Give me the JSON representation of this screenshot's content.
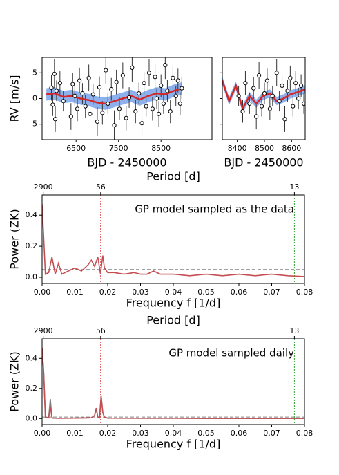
{
  "chart_data": [
    {
      "type": "scatter",
      "xlabel": "BJD - 2450000",
      "ylabel": "RV [m/s]",
      "xlim": [
        5700,
        9700
      ],
      "xticks": [
        6500,
        7500,
        8500
      ],
      "ylim": [
        -8,
        8
      ],
      "yticks": [
        -5,
        0,
        5
      ],
      "ytick_labels": true,
      "x": [
        5920,
        5950,
        5990,
        6010,
        6040,
        6120,
        6200,
        6380,
        6420,
        6470,
        6530,
        6580,
        6650,
        6720,
        6800,
        6830,
        6900,
        7000,
        7050,
        7120,
        7200,
        7250,
        7330,
        7400,
        7450,
        7520,
        7600,
        7680,
        7750,
        7820,
        7900,
        7980,
        8050,
        8100,
        8150,
        8220,
        8300,
        8360,
        8400,
        8450,
        8500,
        8560,
        8600,
        8650,
        8720,
        8780,
        8850,
        8900,
        8950,
        8990
      ],
      "values": [
        2.1,
        -1.2,
        4.8,
        -4.0,
        1.5,
        3.0,
        -0.5,
        -3.5,
        2.8,
        0.5,
        -2.0,
        3.5,
        1.0,
        -1.5,
        4.0,
        -3.0,
        0.8,
        -4.5,
        2.2,
        -2.8,
        5.5,
        -1.0,
        1.8,
        -5.2,
        3.2,
        -2.0,
        4.5,
        -3.8,
        0.2,
        6.0,
        -2.5,
        1.0,
        -4.8,
        3.0,
        -1.5,
        5.0,
        -2.0,
        4.2,
        0.0,
        -3.0,
        2.5,
        -1.0,
        6.5,
        1.5,
        -2.5,
        4.0,
        0.5,
        3.5,
        -1.0,
        2.0
      ],
      "errors": [
        2.5,
        2.2,
        2.8,
        2.5,
        2.0,
        2.3,
        2.0,
        2.6,
        2.2,
        2.0,
        2.4,
        2.5,
        2.0,
        2.2,
        2.6,
        2.3,
        2.0,
        2.8,
        2.1,
        2.3,
        2.7,
        2.0,
        2.2,
        2.9,
        2.4,
        2.2,
        2.5,
        2.4,
        2.0,
        2.8,
        2.3,
        2.1,
        2.7,
        2.2,
        2.0,
        2.6,
        2.3,
        2.4,
        2.0,
        2.5,
        2.2,
        2.0,
        2.7,
        2.1,
        2.3,
        2.4,
        2.0,
        2.3,
        2.2,
        2.1
      ],
      "color": "#ffffff",
      "model_x": [
        5800,
        6000,
        6200,
        6400,
        6600,
        6800,
        7000,
        7200,
        7400,
        7600,
        7800,
        8000,
        8200,
        8400,
        8600,
        8800,
        9000
      ],
      "model_values": [
        0.8,
        1.0,
        0.3,
        0.5,
        0.0,
        -0.3,
        -0.8,
        -1.0,
        -0.5,
        0.0,
        0.5,
        -0.2,
        0.5,
        1.0,
        0.8,
        1.5,
        2.0
      ],
      "model_lower": [
        -0.4,
        -0.2,
        -0.9,
        -0.7,
        -1.2,
        -1.5,
        -2.0,
        -2.2,
        -1.7,
        -1.2,
        -0.7,
        -1.4,
        -0.7,
        -0.2,
        -0.4,
        0.3,
        0.8
      ],
      "model_upper": [
        2.0,
        2.2,
        1.5,
        1.7,
        1.2,
        0.9,
        0.4,
        0.2,
        0.7,
        1.2,
        1.7,
        1.0,
        1.7,
        2.2,
        2.0,
        2.7,
        3.2
      ],
      "model_color": "#d62728",
      "band_color": "#6f9ee8"
    },
    {
      "type": "scatter",
      "xlabel": "BJD - 2450000",
      "xlim": [
        8345,
        8650
      ],
      "xticks": [
        8400,
        8500,
        8600
      ],
      "ylim": [
        -8,
        8
      ],
      "yticks": [
        -5,
        0,
        5
      ],
      "ytick_labels": false,
      "x": [
        8405,
        8420,
        8430,
        8445,
        8460,
        8470,
        8480,
        8490,
        8500,
        8510,
        8520,
        8530,
        8545,
        8555,
        8565,
        8575,
        8585,
        8595,
        8605,
        8615,
        8625,
        8635,
        8645
      ],
      "values": [
        0.5,
        -2.5,
        3.0,
        -1.0,
        2.0,
        -3.5,
        4.5,
        -1.5,
        1.0,
        3.5,
        -2.0,
        0.5,
        5.0,
        -0.5,
        2.5,
        -4.0,
        1.5,
        4.0,
        -1.5,
        3.0,
        0.0,
        2.5,
        -1.0
      ],
      "errors": [
        2.0,
        2.2,
        2.4,
        2.0,
        2.1,
        2.5,
        2.6,
        2.0,
        2.1,
        2.3,
        2.2,
        2.0,
        2.6,
        2.0,
        2.2,
        2.5,
        2.1,
        2.4,
        2.0,
        2.3,
        2.1,
        2.2,
        2.0
      ],
      "color": "#ffffff",
      "model_x": [
        8345,
        8370,
        8395,
        8420,
        8445,
        8470,
        8495,
        8520,
        8545,
        8570,
        8595,
        8620,
        8650
      ],
      "model_values": [
        3.5,
        -0.5,
        2.5,
        -2.0,
        0.5,
        -1.0,
        0.5,
        1.0,
        -0.5,
        0.0,
        0.8,
        1.2,
        1.8
      ],
      "model_lower": [
        2.7,
        -1.3,
        1.7,
        -2.8,
        -0.3,
        -1.8,
        -0.3,
        0.2,
        -1.3,
        -0.8,
        0.0,
        0.4,
        1.0
      ],
      "model_upper": [
        4.3,
        0.3,
        3.3,
        -1.2,
        1.3,
        -0.2,
        1.3,
        1.8,
        0.3,
        0.8,
        1.6,
        2.0,
        2.6
      ],
      "model_color": "#d62728",
      "band_color": "#6f9ee8"
    },
    {
      "type": "line",
      "xlabel": "Frequency f [1/d]",
      "ylabel": "Power (ZK)",
      "top_axis_label": "Period [d]",
      "annotation": "GP model sampled as the data",
      "xlim": [
        0,
        0.08
      ],
      "xticks": [
        {
          "value": 0,
          "label": "0.00"
        },
        0.01,
        0.02,
        0.03,
        0.04,
        0.05,
        0.06,
        0.07,
        0.08
      ],
      "ylim": [
        -0.04,
        0.53
      ],
      "yticks": [
        {
          "value": 0,
          "label": "0.0"
        },
        0.2,
        0.4
      ],
      "period_ticks": [
        2900,
        56,
        13
      ],
      "period_lines": [
        {
          "period": 56,
          "color": "#d62728"
        },
        {
          "period": 13,
          "color": "#2ca02c"
        }
      ],
      "threshold": 0.05,
      "threshold_color": "#808080",
      "x": [
        0,
        0.0005,
        0.001,
        0.002,
        0.003,
        0.004,
        0.005,
        0.006,
        0.008,
        0.01,
        0.012,
        0.014,
        0.015,
        0.016,
        0.017,
        0.0178,
        0.0185,
        0.019,
        0.02,
        0.022,
        0.025,
        0.028,
        0.03,
        0.032,
        0.034,
        0.036,
        0.04,
        0.045,
        0.05,
        0.055,
        0.06,
        0.065,
        0.07,
        0.075,
        0.08
      ],
      "series": [
        {
          "color": "#c44e52",
          "values": [
            0.47,
            0.25,
            0.02,
            0.03,
            0.13,
            0.02,
            0.09,
            0.02,
            0.04,
            0.06,
            0.04,
            0.08,
            0.11,
            0.07,
            0.13,
            0.02,
            0.14,
            0.06,
            0.03,
            0.03,
            0.02,
            0.03,
            0.02,
            0.02,
            0.04,
            0.02,
            0.02,
            0.01,
            0.02,
            0.01,
            0.02,
            0.01,
            0.02,
            0.01,
            0.005
          ]
        }
      ]
    },
    {
      "type": "line",
      "xlabel": "Frequency f [1/d]",
      "ylabel": "Power (ZK)",
      "top_axis_label": "Period [d]",
      "annotation": "GP model sampled daily",
      "xlim": [
        0,
        0.08
      ],
      "xticks": [
        {
          "value": 0,
          "label": "0.00"
        },
        0.01,
        0.02,
        0.03,
        0.04,
        0.05,
        0.06,
        0.07,
        0.08
      ],
      "ylim": [
        -0.04,
        0.53
      ],
      "yticks": [
        {
          "value": 0,
          "label": "0.0"
        },
        0.2,
        0.4
      ],
      "period_ticks": [
        2900,
        56,
        13
      ],
      "period_lines": [
        {
          "period": 56,
          "color": "#d62728"
        },
        {
          "period": 13,
          "color": "#2ca02c"
        }
      ],
      "threshold": 0.01,
      "threshold_color": "#808080",
      "x": [
        0,
        0.0005,
        0.001,
        0.002,
        0.0025,
        0.003,
        0.0035,
        0.005,
        0.01,
        0.015,
        0.016,
        0.0165,
        0.017,
        0.0175,
        0.018,
        0.0185,
        0.019,
        0.02,
        0.03,
        0.04,
        0.05,
        0.06,
        0.07,
        0.08
      ],
      "series": [
        {
          "color": "#808080",
          "values": [
            0.47,
            0.3,
            0.01,
            0.005,
            0.13,
            0.005,
            0.003,
            0.002,
            0.003,
            0.005,
            0.02,
            0.06,
            0.01,
            0.005,
            0.15,
            0.04,
            0.01,
            0.003,
            0.002,
            0.002,
            0.001,
            0.001,
            0.001,
            0.001
          ]
        },
        {
          "color": "#c44e52",
          "values": [
            0.47,
            0.3,
            0.01,
            0.005,
            0.08,
            0.005,
            0.003,
            0.002,
            0.003,
            0.005,
            0.02,
            0.07,
            0.01,
            0.005,
            0.15,
            0.04,
            0.01,
            0.003,
            0.002,
            0.002,
            0.001,
            0.001,
            0.001,
            0.001
          ]
        }
      ]
    }
  ]
}
